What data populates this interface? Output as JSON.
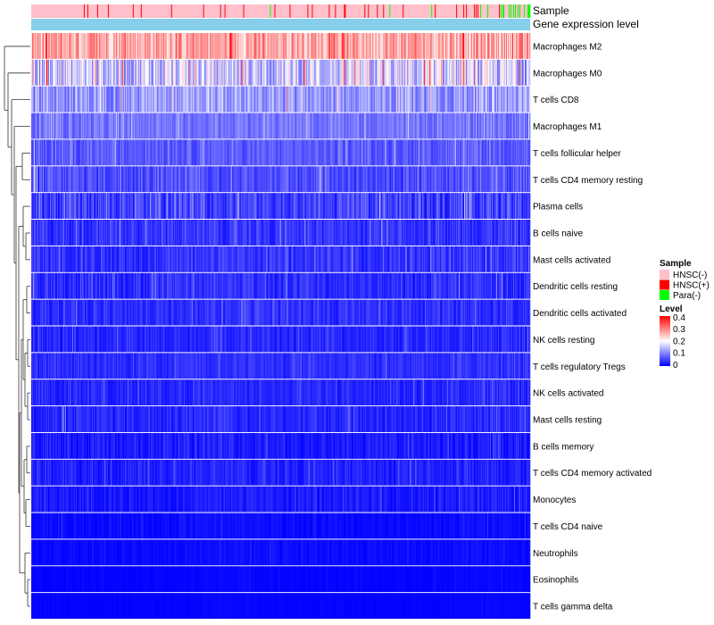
{
  "chart_data": {
    "type": "heatmap",
    "title": "",
    "annotation_tracks": [
      "Sample",
      "Gene expression level"
    ],
    "rows": [
      {
        "name": "Macrophages M2",
        "mean": 0.27,
        "spread": 0.09
      },
      {
        "name": "Macrophages M0",
        "mean": 0.16,
        "spread": 0.12
      },
      {
        "name": "T cells CD8",
        "mean": 0.12,
        "spread": 0.07
      },
      {
        "name": "Macrophages M1",
        "mean": 0.09,
        "spread": 0.04
      },
      {
        "name": "T cells follicular helper",
        "mean": 0.07,
        "spread": 0.04
      },
      {
        "name": "T cells CD4 memory resting",
        "mean": 0.06,
        "spread": 0.05
      },
      {
        "name": "Plasma cells",
        "mean": 0.05,
        "spread": 0.06
      },
      {
        "name": "B cells naive",
        "mean": 0.04,
        "spread": 0.04
      },
      {
        "name": "Mast cells activated",
        "mean": 0.04,
        "spread": 0.04
      },
      {
        "name": "Dendritic cells resting",
        "mean": 0.035,
        "spread": 0.04
      },
      {
        "name": "Dendritic cells activated",
        "mean": 0.035,
        "spread": 0.035
      },
      {
        "name": "NK cells resting",
        "mean": 0.03,
        "spread": 0.03
      },
      {
        "name": "T cells regulatory  Tregs",
        "mean": 0.035,
        "spread": 0.03
      },
      {
        "name": "NK cells activated",
        "mean": 0.03,
        "spread": 0.03
      },
      {
        "name": "Mast cells resting",
        "mean": 0.03,
        "spread": 0.035
      },
      {
        "name": "B cells memory",
        "mean": 0.02,
        "spread": 0.03
      },
      {
        "name": "T cells CD4 memory activated",
        "mean": 0.025,
        "spread": 0.03
      },
      {
        "name": "Monocytes",
        "mean": 0.02,
        "spread": 0.025
      },
      {
        "name": "T cells CD4 naive",
        "mean": 0.008,
        "spread": 0.015
      },
      {
        "name": "Neutrophils",
        "mean": 0.008,
        "spread": 0.012
      },
      {
        "name": "Eosinophils",
        "mean": 0.003,
        "spread": 0.006
      },
      {
        "name": "T cells gamma delta",
        "mean": 0.002,
        "spread": 0.005
      }
    ],
    "n_samples": 560,
    "sample_groups": [
      {
        "name": "HNSC(-)",
        "color": "#FFC0CB"
      },
      {
        "name": "HNSC(+)",
        "color": "#FF0000"
      },
      {
        "name": "Para(-)",
        "color": "#00FF00"
      }
    ],
    "gene_expression_color": "#87CEEB",
    "color_scale": {
      "name": "Level",
      "min": 0,
      "max": 0.4,
      "mid": 0.2,
      "low_color": "#0000FF",
      "mid_color": "#FFFFFF",
      "high_color": "#FF0000",
      "ticks": [
        0,
        0.1,
        0.2,
        0.3,
        0.4
      ]
    }
  },
  "legend": {
    "sample_title": "Sample",
    "sample_items": [
      "HNSC(-)",
      "HNSC(+)",
      "Para(-)"
    ],
    "level_title": "Level",
    "level_ticks": [
      "0.4",
      "0.3",
      "0.2",
      "0.1",
      "0"
    ]
  }
}
